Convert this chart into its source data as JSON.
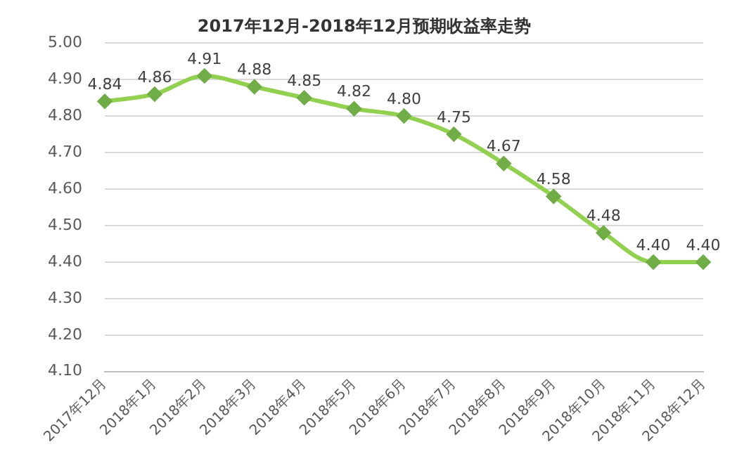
{
  "chart_data": {
    "type": "line",
    "title": "2017年12月-2018年12月预期收益率走势",
    "categories": [
      "2017年12月",
      "2018年1月",
      "2018年2月",
      "2018年3月",
      "2018年4月",
      "2018年5月",
      "2018年6月",
      "2018年7月",
      "2018年8月",
      "2018年9月",
      "2018年10月",
      "2018年11月",
      "2018年12月"
    ],
    "series": [
      {
        "color": "#92d050",
        "values": [
          4.84,
          4.86,
          4.91,
          4.88,
          4.85,
          4.82,
          4.8,
          4.75,
          4.67,
          4.58,
          4.48,
          4.4,
          4.4
        ],
        "value_labels": [
          "4.84",
          "4.86",
          "4.91",
          "4.88",
          "4.85",
          "4.82",
          "4.80",
          "4.75",
          "4.67",
          "4.58",
          "4.48",
          "4.40",
          "4.40"
        ]
      }
    ],
    "ylim": [
      4.1,
      5.0
    ],
    "yticks": [
      {
        "value": 4.1,
        "label": "4.10"
      },
      {
        "value": 4.2,
        "label": "4.20"
      },
      {
        "value": 4.3,
        "label": "4.30"
      },
      {
        "value": 4.4,
        "label": "4.40"
      },
      {
        "value": 4.5,
        "label": "4.50"
      },
      {
        "value": 4.6,
        "label": "4.60"
      },
      {
        "value": 4.7,
        "label": "4.70"
      },
      {
        "value": 4.8,
        "label": "4.80"
      },
      {
        "value": 4.9,
        "label": "4.90"
      },
      {
        "value": 5.0,
        "label": "5.00"
      }
    ],
    "grid": "y",
    "legend": false,
    "marker": "diamond",
    "line_style": "solid"
  }
}
